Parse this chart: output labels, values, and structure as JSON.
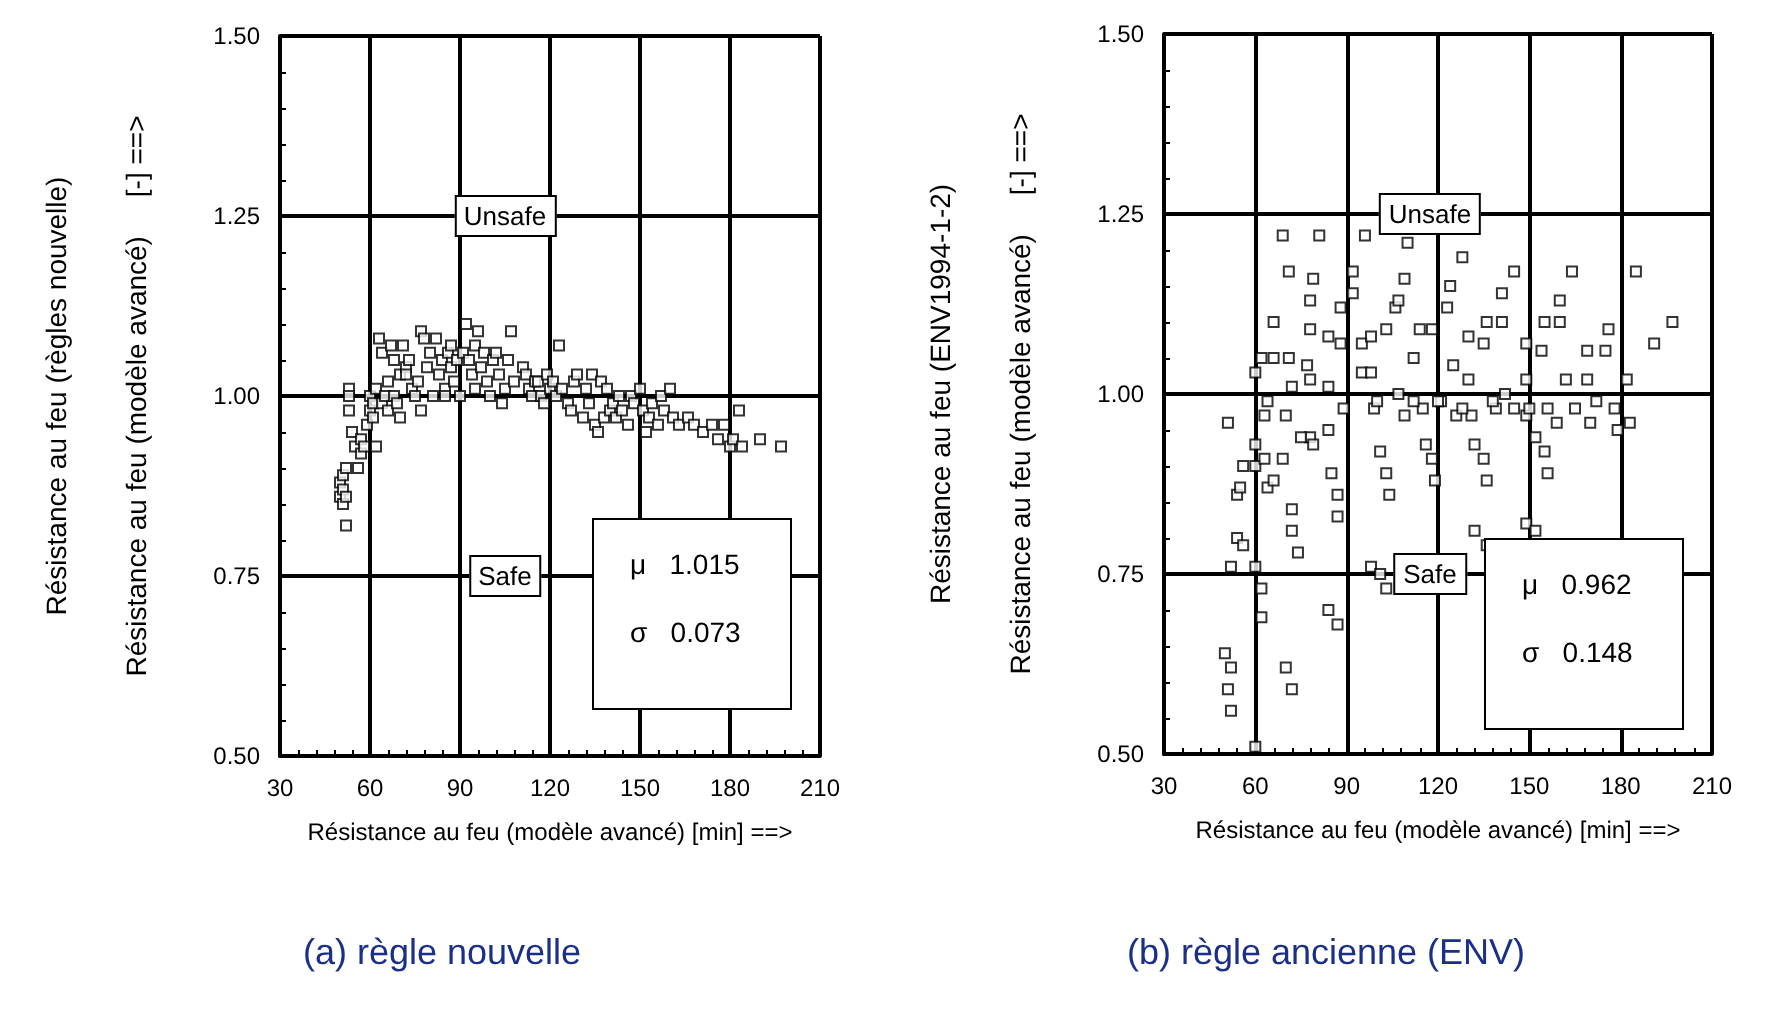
{
  "chart_data": [
    {
      "type": "scatter",
      "title": "(a) règle nouvelle",
      "xlabel": "Résistance au feu (modèle avancé) [min] ==>",
      "ylabel": "Résistance au feu (règles nouvelle)\nRésistance au feu (modèle avancé)     [-] ==>",
      "xlim": [
        30,
        210
      ],
      "ylim": [
        0.5,
        1.5
      ],
      "xticks": [
        30,
        60,
        90,
        120,
        150,
        180,
        210
      ],
      "yticks": [
        {
          "value": 0.5,
          "label": "0.50"
        },
        {
          "value": 0.75,
          "label": "0.75"
        },
        {
          "value": 1.0,
          "label": "1.00"
        },
        {
          "value": 1.25,
          "label": "1.25"
        },
        {
          "value": 1.5,
          "label": "1.50"
        }
      ],
      "grid": true,
      "marker": "square",
      "annotations": [
        "Unsafe",
        "Safe",
        "μ   1.015",
        "σ   0.073"
      ],
      "series": [
        {
          "color": "#000000",
          "x": [
            50,
            50,
            51,
            51,
            51,
            52,
            52,
            52,
            53,
            53,
            53,
            54,
            55,
            56,
            57,
            57,
            58,
            59,
            60,
            60,
            61,
            61,
            62,
            62,
            63,
            64,
            64,
            65,
            66,
            66,
            67,
            68,
            68,
            69,
            70,
            70,
            71,
            72,
            72,
            73,
            74,
            75,
            76,
            77,
            77,
            78,
            79,
            80,
            81,
            82,
            83,
            84,
            85,
            85,
            86,
            87,
            87,
            88,
            89,
            90,
            91,
            92,
            93,
            94,
            95,
            95,
            96,
            97,
            98,
            99,
            100,
            101,
            102,
            103,
            104,
            105,
            106,
            107,
            108,
            111,
            112,
            113,
            114,
            115,
            116,
            117,
            118,
            119,
            120,
            121,
            122,
            123,
            124,
            126,
            127,
            128,
            129,
            131,
            132,
            133,
            134,
            135,
            136,
            137,
            138,
            139,
            140,
            141,
            142,
            143,
            144,
            146,
            147,
            148,
            150,
            151,
            152,
            153,
            154,
            156,
            157,
            158,
            160,
            161,
            163,
            166,
            168,
            171,
            174,
            176,
            178,
            180,
            181,
            183,
            184,
            190,
            197
          ],
          "values": [
            0.88,
            0.86,
            0.85,
            0.87,
            0.89,
            0.82,
            0.9,
            0.86,
            1.01,
            1.0,
            0.98,
            0.95,
            0.93,
            0.9,
            0.94,
            0.92,
            0.93,
            0.96,
            0.98,
            1.0,
            0.99,
            0.97,
            0.93,
            1.01,
            1.08,
            1.06,
            0.99,
            1.0,
            1.02,
            0.98,
            1.07,
            1.05,
            1.0,
            0.99,
            0.97,
            1.03,
            1.07,
            1.04,
            1.03,
            1.05,
            1.01,
            1.0,
            1.02,
            0.98,
            1.09,
            1.08,
            1.04,
            1.06,
            1.0,
            1.08,
            1.03,
            1.05,
            1.01,
            1.0,
            1.06,
            1.07,
            1.04,
            1.02,
            1.05,
            1.0,
            1.06,
            1.1,
            1.05,
            1.03,
            1.01,
            1.07,
            1.09,
            1.04,
            1.06,
            1.02,
            1.0,
            1.05,
            1.06,
            1.03,
            0.99,
            1.01,
            1.05,
            1.09,
            1.02,
            1.04,
            1.03,
            1.01,
            1.0,
            1.02,
            1.02,
            1.0,
            0.99,
            1.03,
            1.01,
            1.02,
            1.0,
            1.07,
            1.01,
            0.99,
            0.98,
            1.02,
            1.03,
            0.97,
            1.01,
            0.99,
            1.03,
            0.96,
            0.95,
            1.02,
            0.97,
            1.01,
            0.98,
            0.99,
            0.97,
            1.0,
            0.98,
            0.96,
            1.0,
            0.99,
            1.01,
            0.98,
            0.95,
            0.97,
            0.99,
            0.96,
            1.0,
            0.98,
            1.01,
            0.97,
            0.96,
            0.97,
            0.96,
            0.95,
            0.96,
            0.94,
            0.96,
            0.93,
            0.94,
            0.98,
            0.93,
            0.94,
            0.93
          ]
        }
      ]
    },
    {
      "type": "scatter",
      "title": "(b) règle ancienne (ENV)",
      "xlabel": "Résistance au feu (modèle avancé) [min] ==>",
      "ylabel": "Résistance au feu (ENV1994-1-2)\nRésistance au feu (modèle avancé)     [-] ==>",
      "xlim": [
        30,
        210
      ],
      "ylim": [
        0.5,
        1.5
      ],
      "xticks": [
        30,
        60,
        90,
        120,
        150,
        180,
        210
      ],
      "yticks": [
        {
          "value": 0.5,
          "label": "0.50"
        },
        {
          "value": 0.75,
          "label": "0.75"
        },
        {
          "value": 1.0,
          "label": "1.00"
        },
        {
          "value": 1.25,
          "label": "1.25"
        },
        {
          "value": 1.5,
          "label": "1.50"
        }
      ],
      "grid": true,
      "marker": "square",
      "annotations": [
        "Unsafe",
        "Safe",
        "μ   0.962",
        "σ   0.148"
      ],
      "series": [
        {
          "color": "#000000",
          "x": [
            51,
            52,
            50,
            52,
            51,
            52,
            54,
            55,
            56,
            54,
            56,
            60,
            62,
            60,
            60,
            60,
            62,
            62,
            60,
            63,
            64,
            63,
            64,
            66,
            66,
            66,
            69,
            71,
            71,
            72,
            70,
            69,
            72,
            72,
            74,
            70,
            72,
            79,
            78,
            78,
            77,
            78,
            78,
            75,
            79,
            81,
            84,
            84,
            84,
            85,
            87,
            87,
            84,
            87,
            88,
            88,
            89,
            92,
            92,
            95,
            95,
            96,
            98,
            98,
            99,
            98,
            101,
            103,
            101,
            103,
            104,
            103,
            106,
            107,
            109,
            107,
            109,
            110,
            112,
            114,
            115,
            116,
            118,
            119,
            118,
            121,
            123,
            124,
            125,
            126,
            128,
            130,
            130,
            131,
            132,
            135,
            136,
            135,
            136,
            141,
            141,
            145,
            139,
            142,
            132,
            136,
            149,
            149,
            149,
            149,
            152,
            152,
            154,
            155,
            155,
            156,
            160,
            160,
            159,
            162,
            164,
            169,
            169,
            170,
            175,
            176,
            178,
            179,
            182,
            183,
            185,
            191,
            197,
            100,
            112,
            120,
            128,
            138,
            145,
            150,
            156,
            165,
            172
          ],
          "values": [
            0.96,
            0.76,
            0.64,
            0.62,
            0.59,
            0.56,
            0.86,
            0.87,
            0.9,
            0.8,
            0.79,
            1.03,
            1.05,
            0.93,
            0.9,
            0.76,
            0.73,
            0.69,
            0.51,
            0.97,
            0.99,
            0.91,
            0.87,
            1.1,
            1.05,
            0.88,
            1.22,
            1.17,
            1.05,
            1.01,
            0.97,
            0.91,
            0.84,
            0.81,
            0.78,
            0.62,
            0.59,
            1.16,
            1.13,
            1.09,
            1.04,
            1.02,
            0.94,
            0.94,
            0.93,
            1.22,
            1.08,
            1.01,
            0.95,
            0.89,
            0.86,
            0.83,
            0.7,
            0.68,
            1.12,
            1.07,
            0.98,
            1.17,
            1.14,
            1.07,
            1.03,
            1.22,
            1.08,
            1.03,
            0.98,
            0.76,
            0.75,
            0.73,
            0.92,
            0.89,
            0.86,
            1.09,
            1.12,
            1.13,
            1.16,
            1.0,
            0.97,
            1.21,
            1.05,
            1.09,
            0.98,
            0.93,
            0.91,
            0.88,
            1.09,
            0.99,
            1.12,
            1.15,
            1.04,
            0.97,
            1.19,
            1.08,
            1.02,
            0.97,
            0.93,
            0.91,
            0.88,
            1.07,
            1.1,
            1.1,
            1.14,
            1.17,
            0.98,
            1.0,
            0.81,
            0.79,
            1.07,
            1.02,
            0.97,
            0.82,
            0.81,
            0.94,
            1.06,
            1.1,
            0.92,
            0.89,
            1.1,
            1.13,
            0.96,
            1.02,
            1.17,
            1.02,
            1.06,
            0.96,
            1.06,
            1.09,
            0.98,
            0.95,
            1.02,
            0.96,
            1.17,
            1.07,
            1.1,
            0.99,
            0.99,
            0.99,
            0.98,
            0.99,
            0.98,
            0.98,
            0.98,
            0.98,
            0.99
          ]
        }
      ]
    }
  ]
}
